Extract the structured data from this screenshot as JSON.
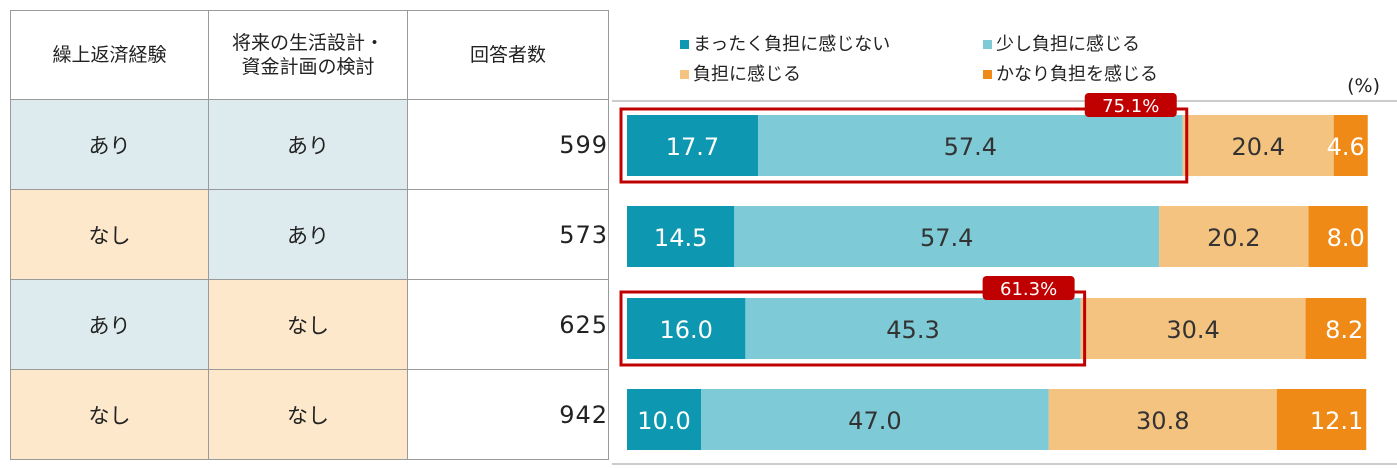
{
  "table": {
    "headers": [
      "繰上返済経験",
      "将来の生活設計・\n資金計画の検討",
      "回答者数"
    ],
    "rows": [
      {
        "col1": "あり",
        "col2": "あり",
        "count": "599"
      },
      {
        "col1": "なし",
        "col2": "あり",
        "count": "573"
      },
      {
        "col1": "あり",
        "col2": "なし",
        "count": "625"
      },
      {
        "col1": "なし",
        "col2": "なし",
        "count": "942"
      }
    ]
  },
  "colors": {
    "none": "#0e97b0",
    "little": "#7ecbd7",
    "burden": "#f5c380",
    "heavy": "#ef8a17",
    "highlight": "#c00000",
    "cell_blue": "#ddebef",
    "cell_peach": "#fde8cc"
  },
  "chart_data": {
    "type": "bar",
    "orientation": "horizontal",
    "stacked": true,
    "unit_label": "(%)",
    "categories": [
      "あり / あり",
      "なし / あり",
      "あり / なし",
      "なし / なし"
    ],
    "series": [
      {
        "name": "まったく負担に感じない",
        "values": [
          17.7,
          14.5,
          16.0,
          10.0
        ]
      },
      {
        "name": "少し負担に感じる",
        "values": [
          57.4,
          57.4,
          45.3,
          47.0
        ]
      },
      {
        "name": "負担に感じる",
        "values": [
          20.4,
          20.2,
          30.4,
          30.8
        ]
      },
      {
        "name": "かなり負担を感じる",
        "values": [
          4.6,
          8.0,
          8.2,
          12.1
        ]
      }
    ],
    "value_labels": [
      [
        "17.7",
        "57.4",
        "20.4",
        "4.6"
      ],
      [
        "14.5",
        "57.4",
        "20.2",
        "8.0"
      ],
      [
        "16.0",
        "45.3",
        "30.4",
        "8.2"
      ],
      [
        "10.0",
        "47.0",
        "30.8",
        "12.1"
      ]
    ],
    "xlim": [
      0,
      100
    ],
    "legend_position": "top",
    "callouts": [
      {
        "row": 0,
        "label": "75.1%",
        "sum_of_series": [
          0,
          1
        ]
      },
      {
        "row": 2,
        "label": "61.3%",
        "sum_of_series": [
          0,
          1
        ]
      }
    ]
  }
}
